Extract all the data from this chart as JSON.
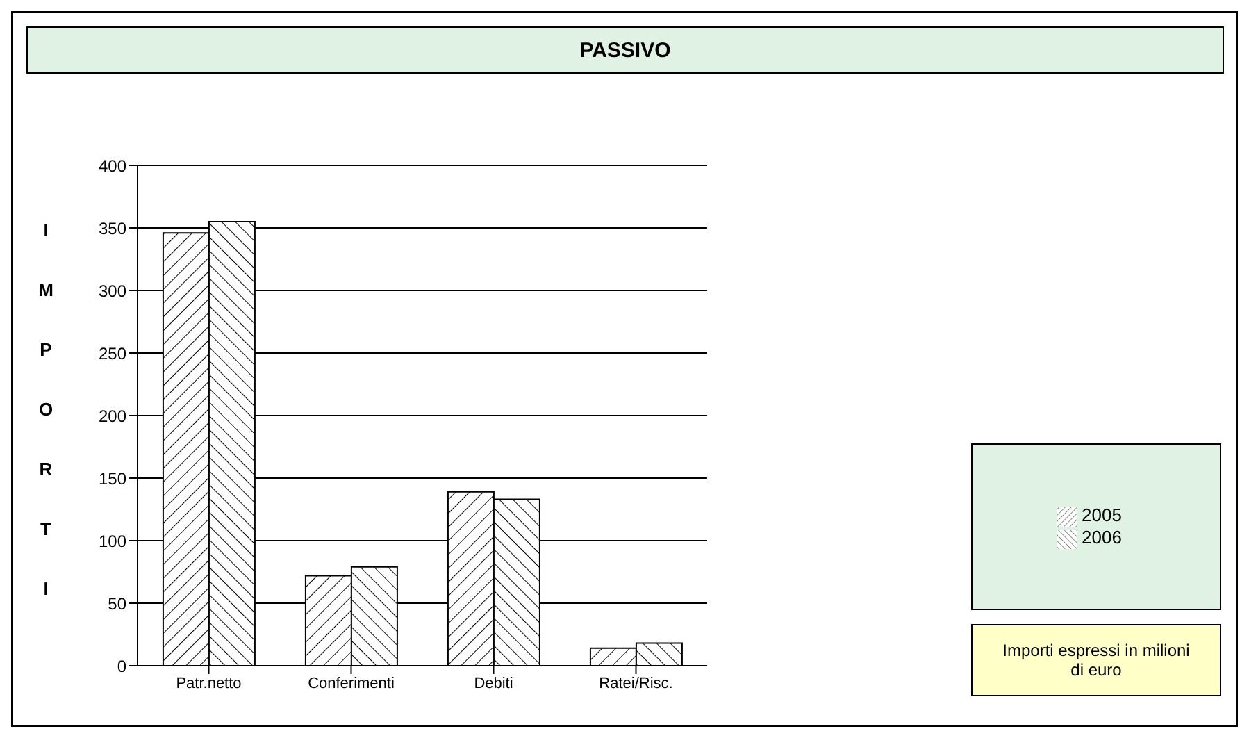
{
  "chart_data": {
    "type": "bar",
    "title": "PASSIVO",
    "ylabel": "IMPORTI",
    "categories": [
      "Patr.netto",
      "Conferimenti",
      "Debiti",
      "Ratei/Risc."
    ],
    "series": [
      {
        "name": "2005",
        "color": "#000000",
        "values": [
          346,
          72,
          139,
          14
        ]
      },
      {
        "name": "2006",
        "color": "#000000",
        "values": [
          355,
          79,
          133,
          18
        ]
      }
    ],
    "ylim": [
      0,
      400
    ],
    "yticks": [
      0,
      50,
      100,
      150,
      200,
      250,
      300,
      350,
      400
    ],
    "grid": "y",
    "legend": "right",
    "annotations": [
      "Importi espressi in milioni di euro"
    ]
  }
}
